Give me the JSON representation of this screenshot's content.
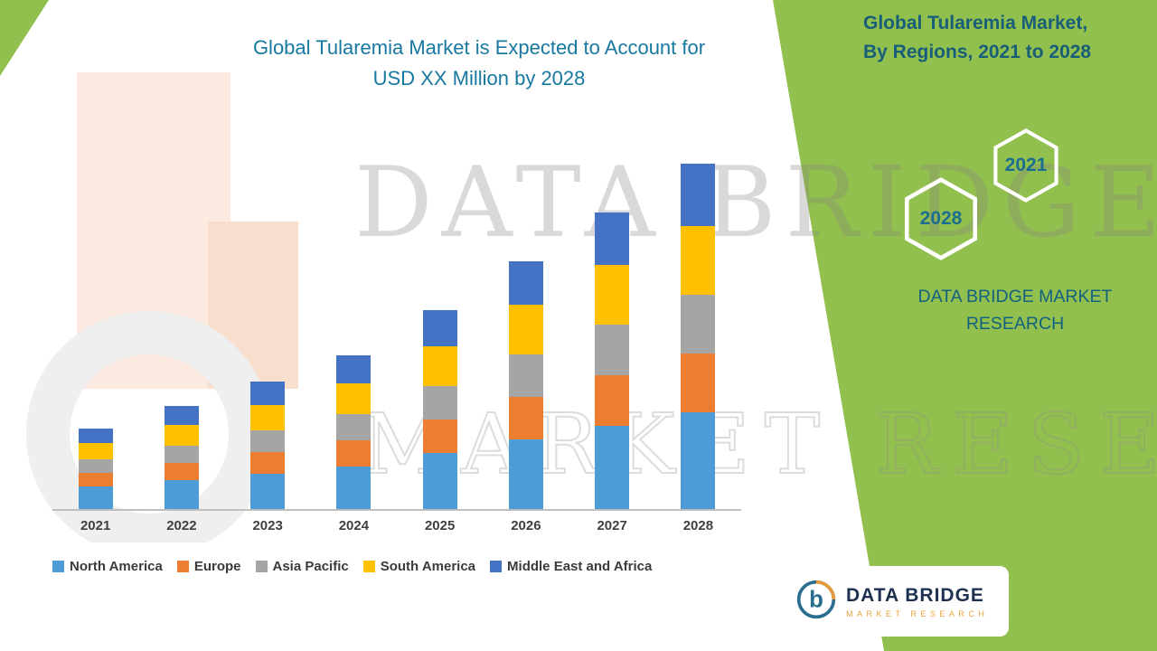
{
  "header": {
    "title_line1": "Global Tularemia Market is Expected to Account for",
    "title_line2": "USD XX Million by 2028"
  },
  "right_panel": {
    "title_line1": "Global Tularemia Market,",
    "title_line2": "By Regions, 2021 to 2028",
    "hex_back_label": "2028",
    "hex_front_label": "2021",
    "brand_line1": "DATA BRIDGE MARKET",
    "brand_line2": "RESEARCH"
  },
  "watermark": {
    "line1": "DATA BRIDGE",
    "line2": "MARKET RESEARCH"
  },
  "footer_logo": {
    "brand": "DATA BRIDGE",
    "sub": "MARKET RESEARCH"
  },
  "colors": {
    "green_panel": "#92C04E",
    "title_teal": "#1878A0",
    "panel_text": "#14607F",
    "north_america": "#4E9CD6",
    "europe": "#ED7D31",
    "asia_pacific": "#A5A5A5",
    "south_america": "#FFC000",
    "middle_east_africa": "#4472C4"
  },
  "chart_data": {
    "type": "bar",
    "stacked": true,
    "title": "Global Tularemia Market is Expected to Account for USD XX Million by 2028",
    "xlabel": "",
    "ylabel": "",
    "ylim": [
      0,
      400
    ],
    "grid": false,
    "legend_position": "bottom",
    "categories": [
      "2021",
      "2022",
      "2023",
      "2024",
      "2025",
      "2026",
      "2027",
      "2028"
    ],
    "series": [
      {
        "name": "North America",
        "color": "#4E9CD6",
        "values": [
          25,
          32,
          39,
          47,
          62,
          77,
          92,
          107
        ]
      },
      {
        "name": "Europe",
        "color": "#ED7D31",
        "values": [
          15,
          19,
          24,
          29,
          37,
          47,
          56,
          65
        ]
      },
      {
        "name": "Asia Pacific",
        "color": "#A5A5A5",
        "values": [
          15,
          19,
          24,
          29,
          37,
          47,
          56,
          65
        ]
      },
      {
        "name": "South America",
        "color": "#FFC000",
        "values": [
          18,
          23,
          28,
          34,
          44,
          55,
          66,
          76
        ]
      },
      {
        "name": "Middle East and Africa",
        "color": "#4472C4",
        "values": [
          16,
          21,
          26,
          31,
          40,
          48,
          58,
          69
        ]
      }
    ]
  }
}
